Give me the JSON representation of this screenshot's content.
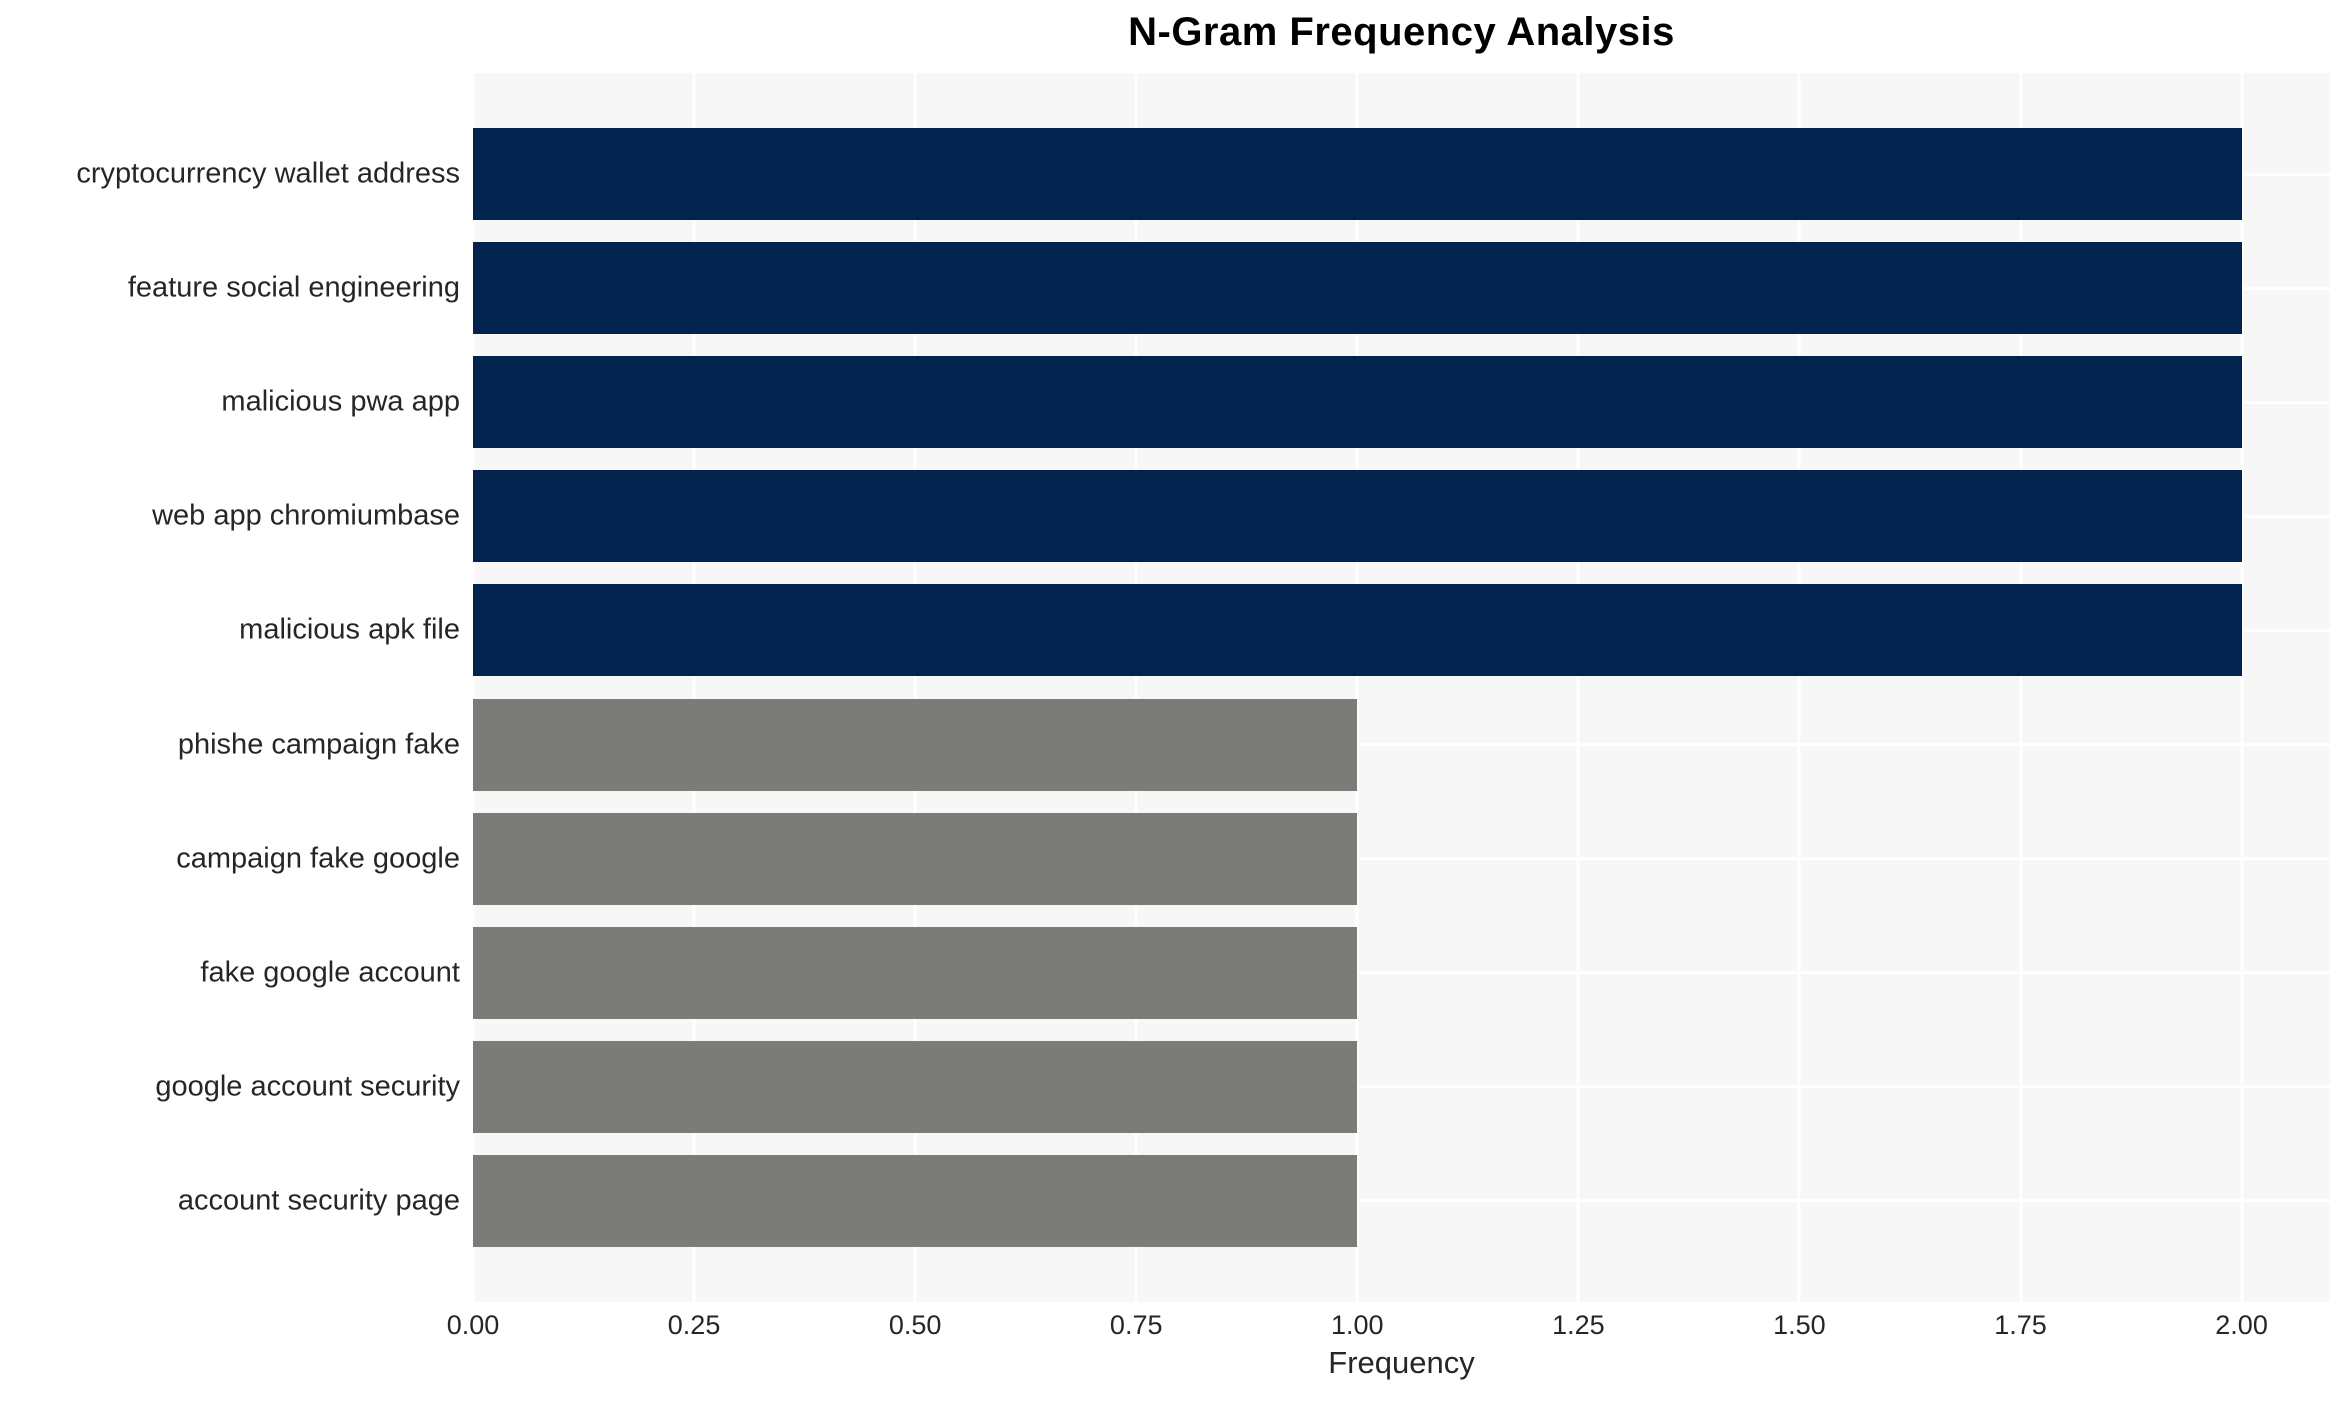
{
  "figure": {
    "title": "N-Gram Frequency Analysis",
    "xlabel": "Frequency"
  },
  "colors": {
    "high_freq_bar": "#02234e",
    "low_freq_bar": "#7b7b78",
    "plot_background": "#f7f7f7",
    "gridline": "#ffffff",
    "tick_text": "#262626",
    "title_text": "#000000"
  },
  "chart_data": {
    "type": "bar",
    "orientation": "horizontal",
    "title": "N-Gram Frequency Analysis",
    "xlabel": "Frequency",
    "ylabel": "",
    "categories": [
      "cryptocurrency wallet address",
      "feature social engineering",
      "malicious pwa app",
      "web app chromiumbase",
      "malicious apk file",
      "phishe campaign fake",
      "campaign fake google",
      "fake google account",
      "google account security",
      "account security page"
    ],
    "values": [
      2,
      2,
      2,
      2,
      2,
      1,
      1,
      1,
      1,
      1
    ],
    "bar_colors": [
      "#02234e",
      "#02234e",
      "#02234e",
      "#02234e",
      "#02234e",
      "#7b7b78",
      "#7b7b78",
      "#7b7b78",
      "#7b7b78",
      "#7b7b78"
    ],
    "xlim": [
      0,
      2.1
    ],
    "xtick_labels": [
      "0.00",
      "0.25",
      "0.50",
      "0.75",
      "1.00",
      "1.25",
      "1.50",
      "1.75",
      "2.00"
    ],
    "xtick_values": [
      0,
      0.25,
      0.5,
      0.75,
      1.0,
      1.25,
      1.5,
      1.75,
      2.0
    ],
    "grid": true,
    "legend": false
  }
}
